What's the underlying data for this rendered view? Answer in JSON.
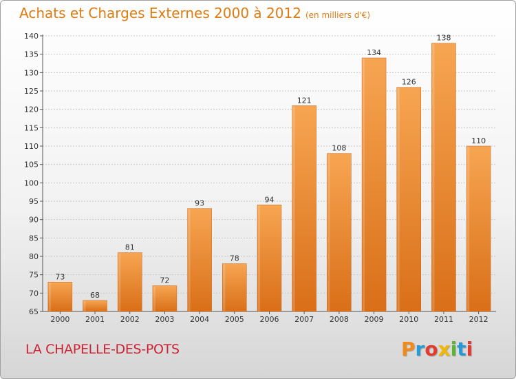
{
  "chart_data": {
    "type": "bar",
    "title": "Achats et Charges Externes 2000 à 2012",
    "subtitle": "(en milliers d'€)",
    "categories": [
      "2000",
      "2001",
      "2002",
      "2003",
      "2004",
      "2005",
      "2006",
      "2007",
      "2008",
      "2009",
      "2010",
      "2011",
      "2012"
    ],
    "values": [
      73,
      68,
      81,
      72,
      93,
      78,
      94,
      121,
      108,
      134,
      126,
      138,
      110
    ],
    "ylim": [
      65,
      140
    ],
    "yticks": [
      65,
      70,
      75,
      80,
      85,
      90,
      95,
      100,
      105,
      110,
      115,
      120,
      125,
      130,
      135,
      140
    ],
    "xlabel": "",
    "ylabel": "",
    "grid": true
  },
  "location": "LA CHAPELLE-DES-POTS",
  "logo": {
    "text": "Proxiti"
  },
  "colors": {
    "title": "#e07b10",
    "bar_light": "#f7a552",
    "bar_dark": "#d96f18",
    "location": "#cc2233",
    "grid": "#c8c8c8"
  }
}
